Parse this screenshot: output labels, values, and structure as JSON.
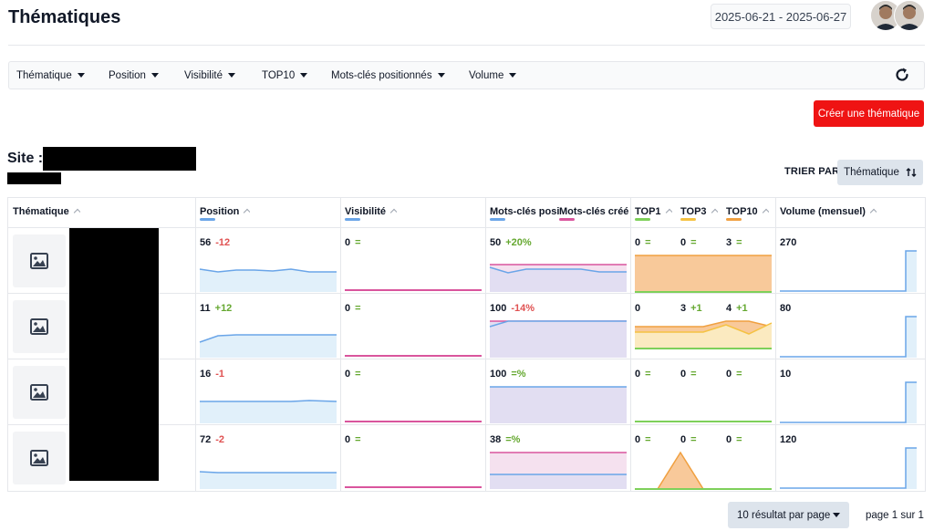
{
  "page": {
    "title": "Thématiques",
    "date_range": "2025-06-21 - 2025-06-27"
  },
  "filters": [
    "Thématique",
    "Position",
    "Visibilité",
    "TOP10",
    "Mots-clés positionnés",
    "Volume"
  ],
  "actions": {
    "create_label": "Créer une thématique",
    "reload_icon": "refresh-icon"
  },
  "site": {
    "label": "Site :"
  },
  "sort": {
    "label": "TRIER PAR",
    "value": "Thématique"
  },
  "table": {
    "headers": {
      "thematique": "Thématique",
      "position": "Position",
      "visibilite": "Visibilité",
      "mots_cles_positionnes": "Mots-clés positionnés",
      "mots_cles_crees": "Mots-clés créés",
      "top1": "TOP1",
      "top3": "TOP3",
      "top10": "TOP10",
      "volume": "Volume (mensuel)"
    },
    "colors": {
      "position": "#6aa5e8",
      "visibilite": "#d9559d",
      "mots_cles": "#6aa5e8",
      "mots_cles_crees": "#d9559d",
      "top1": "#7ed05a",
      "top3": "#f5c242",
      "top10": "#f0a040",
      "volume": "#6aa5e8"
    },
    "rows": [
      {
        "position": "56",
        "position_delta": "-12",
        "visibilite": "0",
        "visibilite_delta": "=",
        "mots_cles": "50",
        "mots_cles_delta": "+20%",
        "top1": "0",
        "top1_delta": "=",
        "top3": "0",
        "top3_delta": "=",
        "top10": "3",
        "top10_delta": "=",
        "volume": "270"
      },
      {
        "position": "11",
        "position_delta": "+12",
        "visibilite": "0",
        "visibilite_delta": "=",
        "mots_cles": "100",
        "mots_cles_delta": "-14%",
        "top1": "0",
        "top1_delta": "",
        "top3": "3",
        "top3_delta": "+1",
        "top10": "4",
        "top10_delta": "+1",
        "volume": "80"
      },
      {
        "position": "16",
        "position_delta": "-1",
        "visibilite": "0",
        "visibilite_delta": "=",
        "mots_cles": "100",
        "mots_cles_delta": "=%",
        "top1": "0",
        "top1_delta": "=",
        "top3": "0",
        "top3_delta": "=",
        "top10": "0",
        "top10_delta": "=",
        "volume": "10"
      },
      {
        "position": "72",
        "position_delta": "-2",
        "visibilite": "0",
        "visibilite_delta": "=",
        "mots_cles": "38",
        "mots_cles_delta": "=%",
        "top1": "0",
        "top1_delta": "=",
        "top3": "0",
        "top3_delta": "=",
        "top10": "0",
        "top10_delta": "=",
        "volume": "120"
      }
    ]
  },
  "pagination": {
    "per_page": "10 résultat par page",
    "page_info": "page 1 sur 1"
  }
}
